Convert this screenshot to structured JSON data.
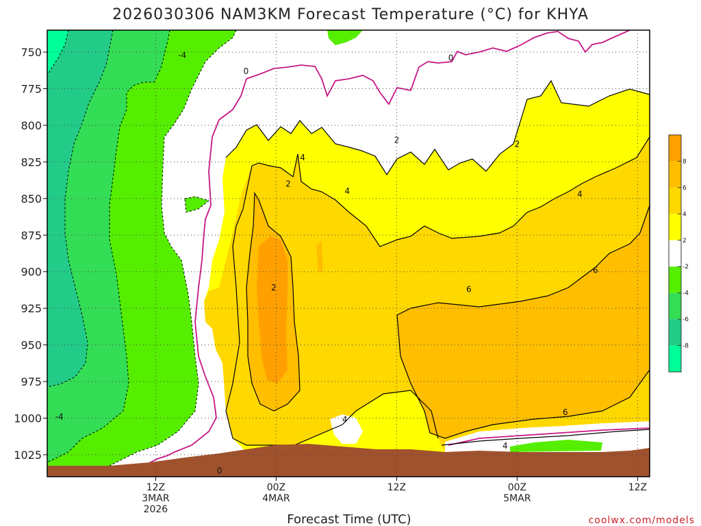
{
  "chart_data": {
    "type": "heatmap",
    "title": "2026030306 NAM3KM Forecast Temperature (°C) for KHYA",
    "xlabel": "Forecast Time (UTC)",
    "credit": "coolwx.com/models",
    "y_ticks": [
      "750",
      "775",
      "800",
      "825",
      "850",
      "875",
      "900",
      "925",
      "950",
      "975",
      "1000",
      "1025"
    ],
    "y_values": [
      750,
      775,
      800,
      825,
      850,
      875,
      900,
      925,
      950,
      975,
      1000,
      1025
    ],
    "ylim": [
      735,
      1040
    ],
    "xlim_hours": [
      3,
      53
    ],
    "x_ticks": [
      {
        "hour": 12,
        "line1": "12Z",
        "line2": "3MAR",
        "line3": "2026"
      },
      {
        "hour": 22,
        "line1": "00Z",
        "line2": "4MAR",
        "line3": ""
      },
      {
        "hour": 32,
        "line1": "12Z",
        "line2": "",
        "line3": ""
      },
      {
        "hour": 42,
        "line1": "00Z",
        "line2": "5MAR",
        "line3": ""
      },
      {
        "hour": 52,
        "line1": "12Z",
        "line2": "",
        "line3": ""
      }
    ],
    "colorbar": {
      "labels": [
        "8",
        "6",
        "4",
        "2",
        "-2",
        "-4",
        "-6",
        "-8"
      ],
      "colors": [
        "#ffa000",
        "#ffbe00",
        "#ffd800",
        "#ffff00",
        "#ffffff",
        "#55ee00",
        "#33dd55",
        "#22cc88",
        "#00ff99"
      ]
    },
    "contour_labels": [
      {
        "text": "-4",
        "h": 14.2,
        "p": 752
      },
      {
        "text": "0",
        "h": 19.5,
        "p": 763
      },
      {
        "text": "0",
        "h": 36.5,
        "p": 754
      },
      {
        "text": "2",
        "h": 32.0,
        "p": 810
      },
      {
        "text": "2",
        "h": 42.0,
        "p": 813
      },
      {
        "text": "4",
        "h": 24.2,
        "p": 822
      },
      {
        "text": "2",
        "h": 23.0,
        "p": 840
      },
      {
        "text": "4",
        "h": 27.9,
        "p": 845
      },
      {
        "text": "4",
        "h": 47.2,
        "p": 847
      },
      {
        "text": "2",
        "h": 21.8,
        "p": 911
      },
      {
        "text": "6",
        "h": 38.0,
        "p": 912
      },
      {
        "text": "6",
        "h": 48.5,
        "p": 899
      },
      {
        "text": "6",
        "h": 46.0,
        "p": 996
      },
      {
        "text": "4",
        "h": 41.0,
        "p": 1019
      },
      {
        "text": "4",
        "h": 27.7,
        "p": 1001
      },
      {
        "text": "0",
        "h": 17.3,
        "p": 1036
      },
      {
        "text": "-4",
        "h": 4.0,
        "p": 999
      }
    ],
    "fill_colors": {
      "n8": "#00ff99",
      "n6": "#22cc88",
      "n4": "#33dd55",
      "n2": "#55ee00",
      "zero": "#ffffff",
      "p2": "#ffff00",
      "p4": "#ffd800",
      "p6": "#ffbe00",
      "p8": "#ffa000",
      "terrain": "#a0522d",
      "zero_line": "#c71585"
    }
  }
}
